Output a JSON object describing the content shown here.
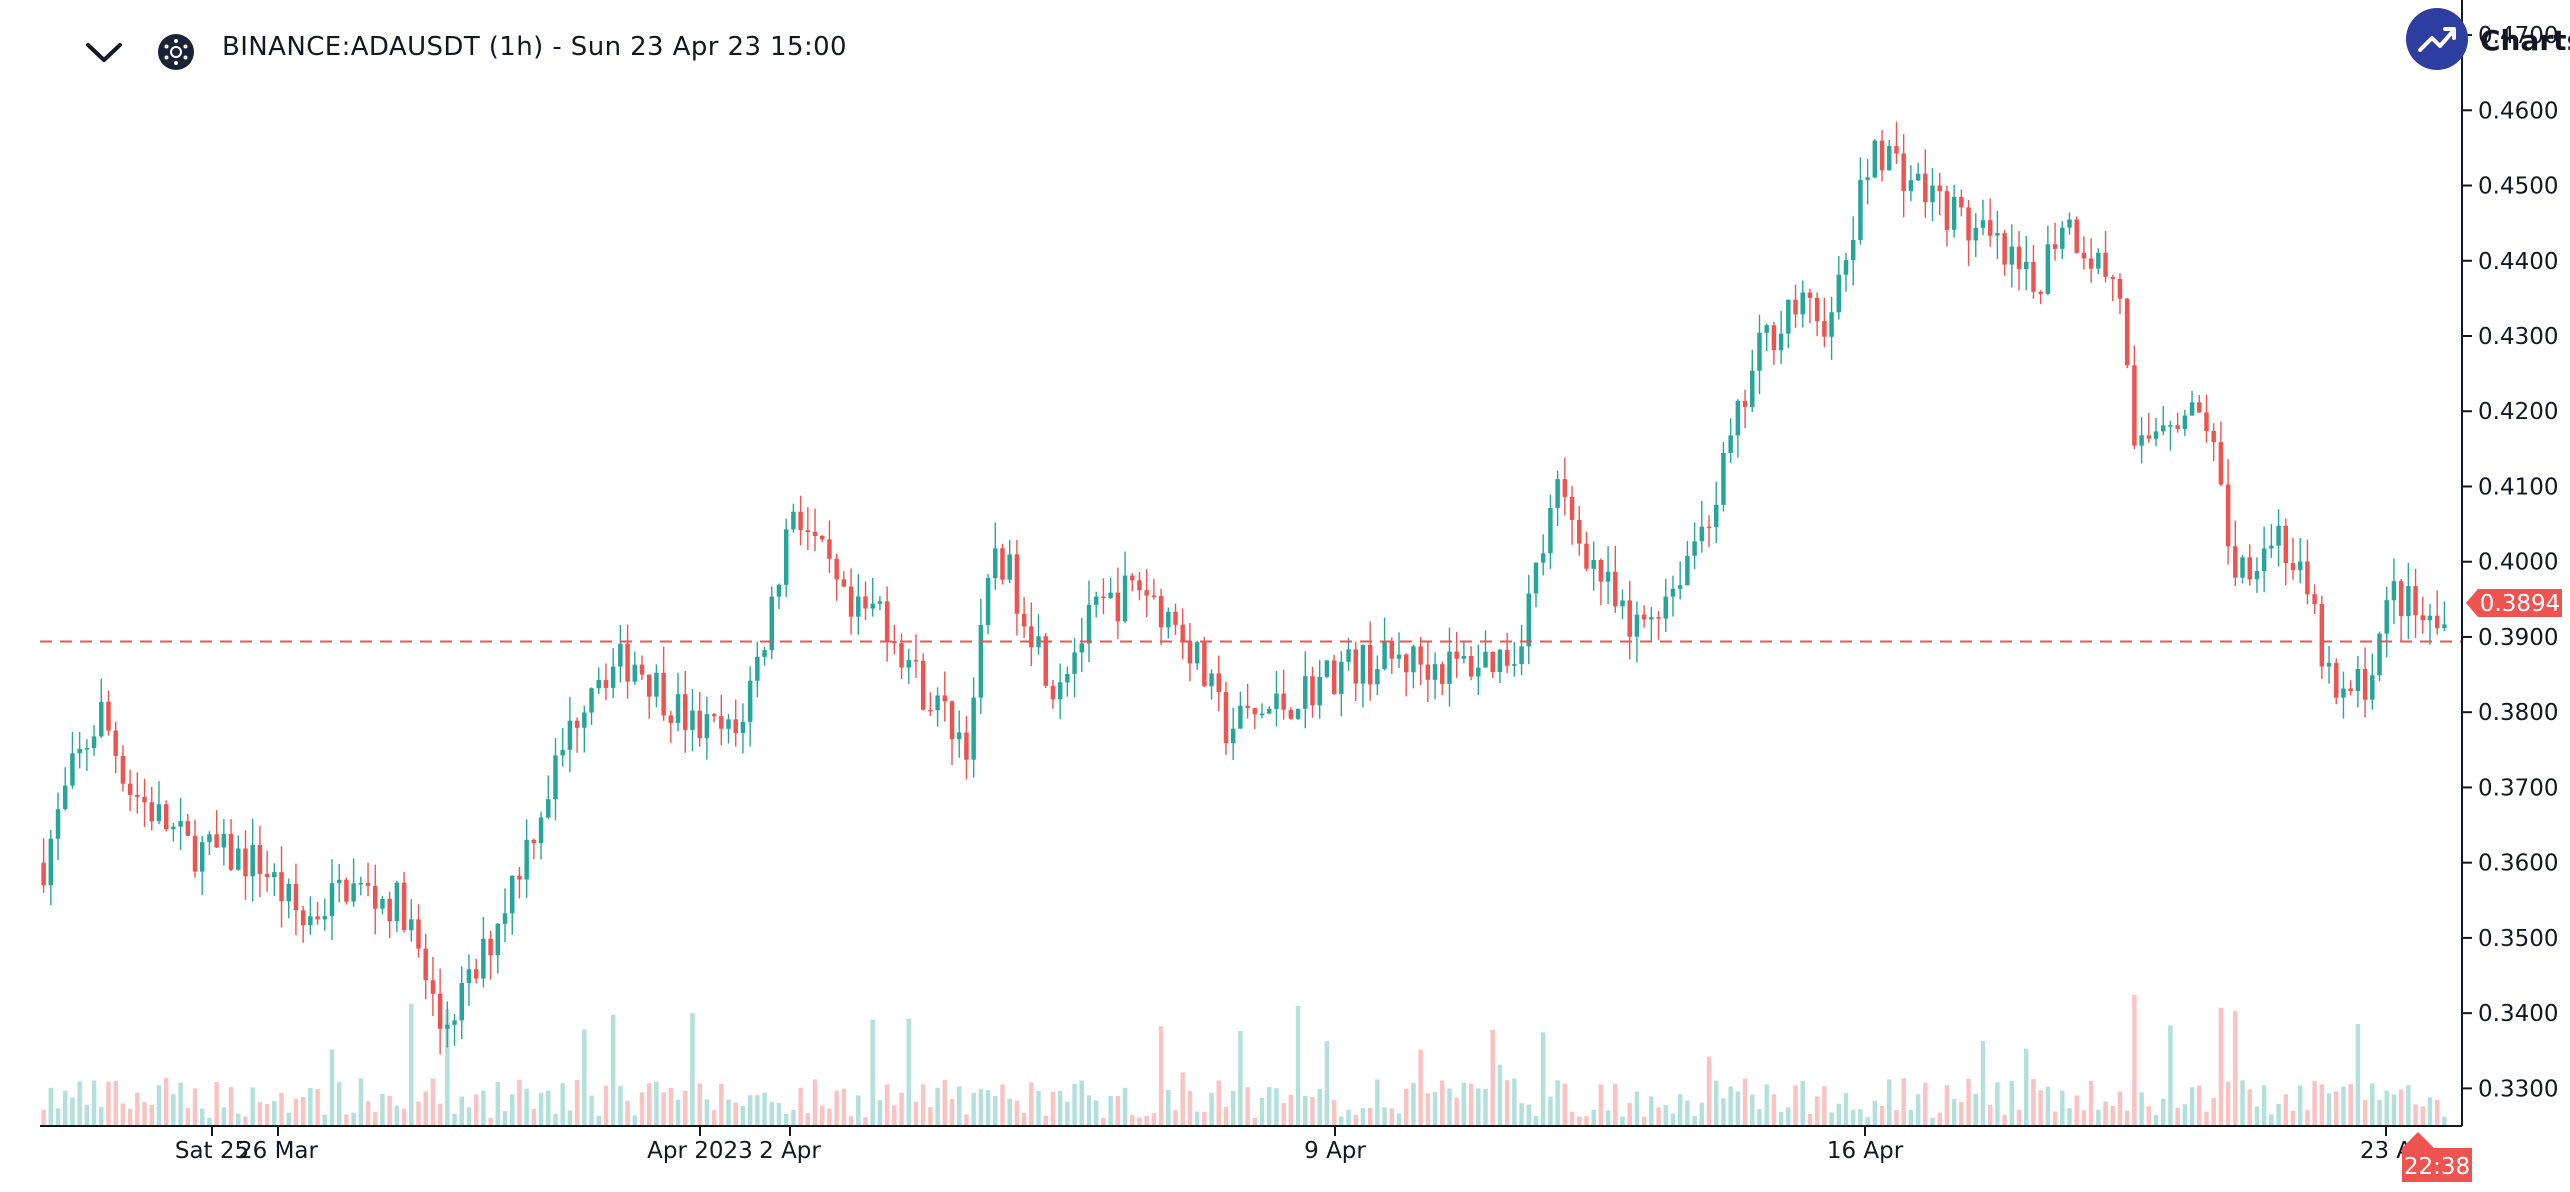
{
  "header": {
    "symbol_title": "BINANCE:ADAUSDT (1h) - Sun 23 Apr 23 15:00",
    "brand_text": "Charts b",
    "icons": {
      "collapse": "chevron-down-icon",
      "symbol": "cardano-logo-icon",
      "brand": "trend-up-icon"
    }
  },
  "colors": {
    "up": "#26a69a",
    "down": "#ef5350",
    "price_line": "#ef5350",
    "axis": "#131722"
  },
  "chart_data": {
    "type": "candlestick",
    "symbol": "ADAUSDT",
    "exchange": "BINANCE",
    "interval": "1h",
    "ylim": [
      0.325,
      0.472
    ],
    "y_ticks": [
      "0.3300",
      "0.3400",
      "0.3500",
      "0.3600",
      "0.3700",
      "0.3800",
      "0.3900",
      "0.4000",
      "0.4100",
      "0.4200",
      "0.4300",
      "0.4400",
      "0.4500",
      "0.4600",
      "0.4700"
    ],
    "x_ticks": [
      "Sat 25",
      "26 Mar",
      "Apr 2023",
      "2 Apr",
      "9 Apr",
      "16 Apr",
      "23 A"
    ],
    "last_price": "0.3894",
    "countdown": "22:38",
    "grid": false,
    "volume_shown": true,
    "close_path": [
      [
        0,
        0.36
      ],
      [
        4,
        0.372
      ],
      [
        8,
        0.38
      ],
      [
        10,
        0.375
      ],
      [
        12,
        0.37
      ],
      [
        20,
        0.362
      ],
      [
        30,
        0.36
      ],
      [
        36,
        0.352
      ],
      [
        42,
        0.357
      ],
      [
        50,
        0.354
      ],
      [
        55,
        0.338
      ],
      [
        60,
        0.345
      ],
      [
        68,
        0.365
      ],
      [
        76,
        0.385
      ],
      [
        82,
        0.387
      ],
      [
        90,
        0.378
      ],
      [
        96,
        0.377
      ],
      [
        100,
        0.39
      ],
      [
        104,
        0.408
      ],
      [
        108,
        0.4
      ],
      [
        112,
        0.392
      ],
      [
        116,
        0.394
      ],
      [
        122,
        0.383
      ],
      [
        128,
        0.376
      ],
      [
        132,
        0.402
      ],
      [
        136,
        0.394
      ],
      [
        140,
        0.384
      ],
      [
        146,
        0.393
      ],
      [
        152,
        0.397
      ],
      [
        158,
        0.391
      ],
      [
        164,
        0.378
      ],
      [
        172,
        0.381
      ],
      [
        180,
        0.386
      ],
      [
        188,
        0.387
      ],
      [
        196,
        0.386
      ],
      [
        204,
        0.388
      ],
      [
        210,
        0.409
      ],
      [
        216,
        0.398
      ],
      [
        220,
        0.39
      ],
      [
        226,
        0.397
      ],
      [
        232,
        0.409
      ],
      [
        238,
        0.428
      ],
      [
        242,
        0.434
      ],
      [
        248,
        0.432
      ],
      [
        254,
        0.456
      ],
      [
        260,
        0.45
      ],
      [
        264,
        0.447
      ],
      [
        270,
        0.442
      ],
      [
        276,
        0.436
      ],
      [
        280,
        0.446
      ],
      [
        288,
        0.436
      ],
      [
        290,
        0.413
      ],
      [
        294,
        0.42
      ],
      [
        300,
        0.419
      ],
      [
        304,
        0.399
      ],
      [
        310,
        0.404
      ],
      [
        314,
        0.395
      ],
      [
        318,
        0.381
      ],
      [
        322,
        0.384
      ],
      [
        326,
        0.396
      ],
      [
        330,
        0.392
      ],
      [
        333,
        0.391
      ]
    ]
  }
}
